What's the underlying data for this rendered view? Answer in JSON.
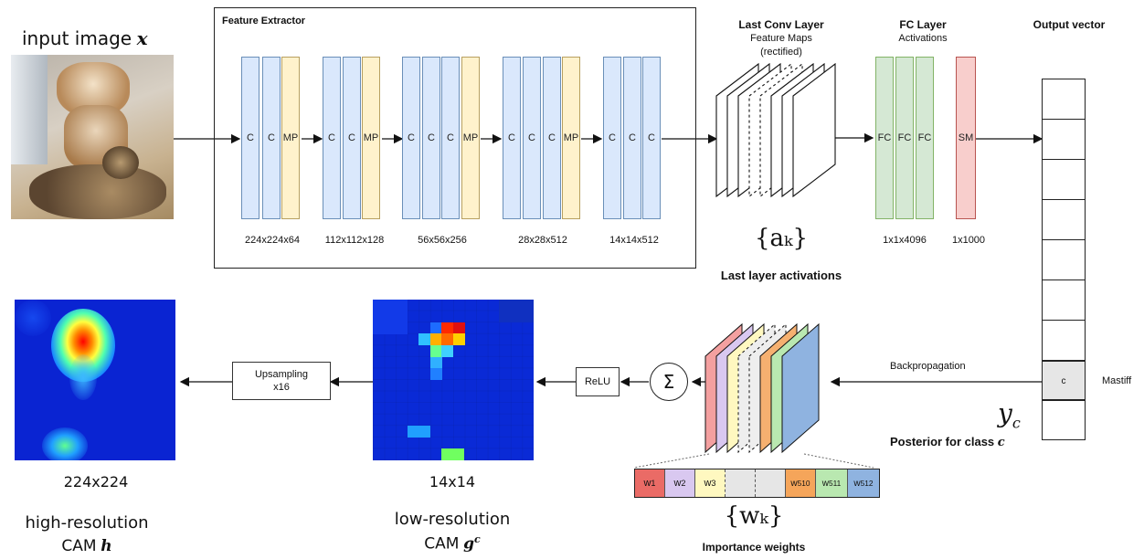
{
  "input": {
    "label": "input image",
    "var": "x"
  },
  "feature_extractor": {
    "title": "Feature Extractor",
    "groups": [
      {
        "blocks": [
          "C",
          "C",
          "MP"
        ],
        "dims": "224x224x64"
      },
      {
        "blocks": [
          "C",
          "C",
          "MP"
        ],
        "dims": "112x112x128"
      },
      {
        "blocks": [
          "C",
          "C",
          "C",
          "MP"
        ],
        "dims": "56x56x256"
      },
      {
        "blocks": [
          "C",
          "C",
          "C",
          "MP"
        ],
        "dims": "28x28x512"
      },
      {
        "blocks": [
          "C",
          "C",
          "C"
        ],
        "dims": "14x14x512"
      }
    ]
  },
  "last_conv": {
    "title": "Last Conv Layer",
    "sub1": "Feature Maps",
    "sub2": "(rectified)",
    "activation_symbol": "{aₖ}",
    "caption": "Last layer activations"
  },
  "fc_layer": {
    "title": "FC Layer",
    "sub": "Activations",
    "blocks": [
      "FC",
      "FC",
      "FC"
    ],
    "fc_dims": "1x1x4096",
    "sm_block": "SM",
    "sm_dims": "1x1000"
  },
  "output": {
    "title": "Output vector",
    "class_cell": "c",
    "class_name": "Mastiff",
    "posterior_symbol": "y",
    "posterior_sub": "c",
    "posterior_caption": "Posterior for class",
    "posterior_var": "c"
  },
  "backprop": {
    "label": "Backpropagation"
  },
  "weights": {
    "symbol": "{wₖ}",
    "caption": "Importance weights",
    "cells": [
      "w1",
      "w2",
      "w3",
      "",
      "",
      "w510",
      "w511",
      "w512"
    ],
    "subs": [
      "1",
      "2",
      "3",
      "",
      "",
      "510",
      "511",
      "512"
    ],
    "colors": [
      "#ea6b66",
      "#d9c8f0",
      "#fff8c0",
      "#e0e0e0",
      "#e0e0e0",
      "#f5a55a",
      "#b9e8b0",
      "#8fb3e0"
    ]
  },
  "ops": {
    "sum": "Σ",
    "relu": "ReLU",
    "upsample_line1": "Upsampling",
    "upsample_line2": "x16"
  },
  "low_cam": {
    "dims": "14x14",
    "line1": "low-resolution",
    "line2": "CAM",
    "var": "g",
    "sup": "c"
  },
  "high_cam": {
    "dims": "224x224",
    "line1": "high-resolution",
    "line2": "CAM",
    "var": "h"
  },
  "colors": {
    "conv": "#dae8fc",
    "pool": "#fff2cc",
    "fc": "#d5e8d4",
    "sm": "#f8cecc",
    "jet_bg": "#1022d8"
  }
}
